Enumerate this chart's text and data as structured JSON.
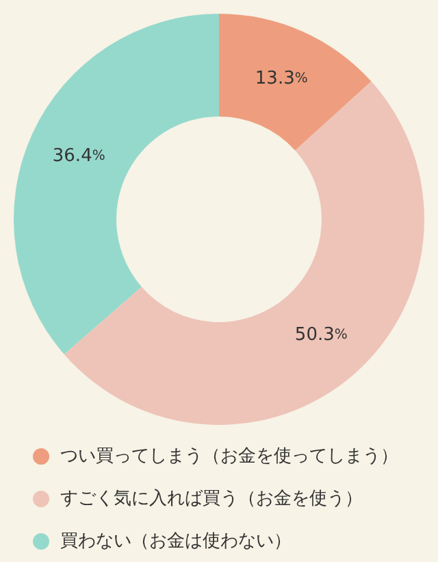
{
  "chart_data": {
    "type": "donut",
    "categories": [
      "つい買ってしまう（お金を使ってしまう）",
      "すごく気に入れば買う（お金を使う）",
      "買わない（お金は使わない）"
    ],
    "values": [
      13.3,
      50.3,
      36.4
    ],
    "colors": [
      "#ee9e7e",
      "#eec4b8",
      "#95d9cc"
    ],
    "value_labels": [
      "13.3%",
      "50.3%",
      "36.4%"
    ],
    "legend": "bottom"
  }
}
